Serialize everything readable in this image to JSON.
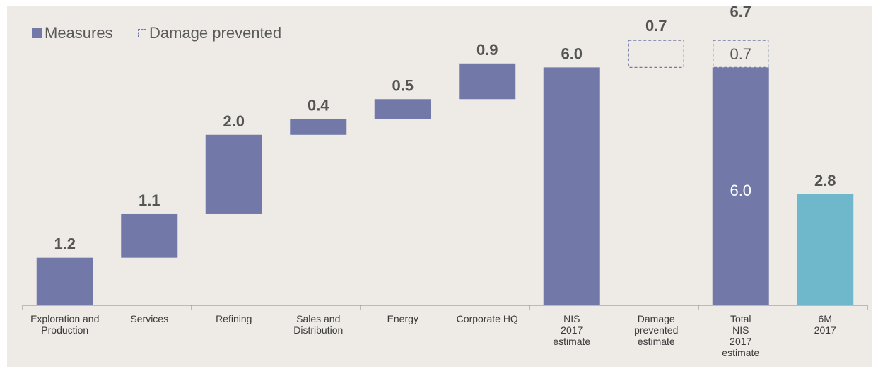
{
  "legend": {
    "measures_label": "Measures",
    "damage_label": "Damage prevented"
  },
  "colors": {
    "measures": "#7279a8",
    "actual": "#6fb8cc",
    "background": "#eeebe6",
    "label": "#555555"
  },
  "chart_data": {
    "type": "bar",
    "subtype": "waterfall",
    "title": "",
    "xlabel": "",
    "ylabel": "",
    "ylim": [
      0,
      7
    ],
    "categories": [
      [
        "Exploration and",
        "Production"
      ],
      [
        "Services"
      ],
      [
        "Refining"
      ],
      [
        "Sales and",
        "Distribution"
      ],
      [
        "Energy"
      ],
      [
        "Corporate HQ"
      ],
      [
        "NIS",
        "2017",
        "estimate"
      ],
      [
        "Damage",
        "prevented",
        "estimate"
      ],
      [
        "Total",
        "NIS",
        "2017",
        "estimate"
      ],
      [
        "6M",
        "2017"
      ]
    ],
    "bars": [
      {
        "base": 0.0,
        "value": 1.2,
        "label": "1.2",
        "style": "measures"
      },
      {
        "base": 1.2,
        "value": 1.1,
        "label": "1.1",
        "style": "measures"
      },
      {
        "base": 2.3,
        "value": 2.0,
        "label": "2.0",
        "style": "measures"
      },
      {
        "base": 4.3,
        "value": 0.4,
        "label": "0.4",
        "style": "measures"
      },
      {
        "base": 4.7,
        "value": 0.5,
        "label": "0.5",
        "style": "measures"
      },
      {
        "base": 5.2,
        "value": 0.9,
        "label": "0.9",
        "style": "measures"
      },
      {
        "base": 0.0,
        "value": 6.0,
        "label": "6.0",
        "style": "measures"
      },
      {
        "base": 6.0,
        "value": 0.7,
        "label": "0.7",
        "style": "damage"
      },
      {
        "base": 0.0,
        "value": 6.7,
        "label": "6.7",
        "style": "stacked",
        "segments": [
          {
            "value": 6.0,
            "label": "6.0",
            "style": "measures"
          },
          {
            "value": 0.7,
            "label": "0.7",
            "style": "damage"
          }
        ]
      },
      {
        "base": 0.0,
        "value": 2.8,
        "label": "2.8",
        "style": "actual"
      }
    ],
    "legend_position": "top-left",
    "grid": false
  }
}
